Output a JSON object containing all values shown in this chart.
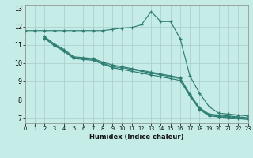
{
  "xlabel": "Humidex (Indice chaleur)",
  "xlim": [
    0,
    23
  ],
  "ylim": [
    6.7,
    13.2
  ],
  "xticks": [
    0,
    1,
    2,
    3,
    4,
    5,
    6,
    7,
    8,
    9,
    10,
    11,
    12,
    13,
    14,
    15,
    16,
    17,
    18,
    19,
    20,
    21,
    22,
    23
  ],
  "yticks": [
    7,
    8,
    9,
    10,
    11,
    12,
    13
  ],
  "bg_color": "#c5ece6",
  "grid_color": "#aacccc",
  "line_color": "#2e7d72",
  "lines": [
    {
      "x": [
        0,
        1,
        2,
        3,
        4,
        5,
        6,
        7,
        8,
        9,
        10,
        11,
        12,
        13,
        14,
        15,
        16,
        17,
        18,
        19,
        20,
        21,
        22,
        23
      ],
      "y": [
        11.78,
        11.78,
        11.78,
        11.78,
        11.78,
        11.78,
        11.78,
        11.78,
        11.78,
        11.85,
        11.92,
        11.95,
        12.1,
        12.82,
        12.28,
        12.28,
        11.35,
        9.3,
        8.35,
        7.6,
        7.25,
        7.2,
        7.15,
        7.1
      ]
    },
    {
      "x": [
        2,
        3,
        4,
        5,
        6,
        7,
        8,
        9,
        10,
        11,
        12,
        13,
        14,
        15,
        16,
        17,
        18,
        19,
        20,
        21,
        22,
        23
      ],
      "y": [
        11.45,
        11.05,
        10.75,
        10.35,
        10.3,
        10.25,
        10.05,
        9.9,
        9.8,
        9.7,
        9.6,
        9.5,
        9.4,
        9.3,
        9.2,
        8.3,
        7.55,
        7.2,
        7.15,
        7.1,
        7.05,
        7.0
      ]
    },
    {
      "x": [
        2,
        3,
        4,
        5,
        6,
        7,
        8,
        9,
        10,
        11,
        12,
        13,
        14,
        15,
        16,
        17,
        18,
        19,
        20,
        21,
        22,
        23
      ],
      "y": [
        11.4,
        11.0,
        10.7,
        10.3,
        10.25,
        10.2,
        10.0,
        9.8,
        9.75,
        9.65,
        9.55,
        9.45,
        9.35,
        9.25,
        9.15,
        8.25,
        7.5,
        7.15,
        7.1,
        7.05,
        7.0,
        6.95
      ]
    },
    {
      "x": [
        2,
        3,
        4,
        5,
        6,
        7,
        8,
        9,
        10,
        11,
        12,
        13,
        14,
        15,
        16,
        17,
        18,
        19,
        20,
        21,
        22,
        23
      ],
      "y": [
        11.35,
        10.95,
        10.65,
        10.25,
        10.2,
        10.15,
        9.95,
        9.75,
        9.65,
        9.55,
        9.45,
        9.35,
        9.25,
        9.15,
        9.05,
        8.2,
        7.45,
        7.1,
        7.05,
        7.0,
        6.95,
        6.9
      ]
    }
  ]
}
